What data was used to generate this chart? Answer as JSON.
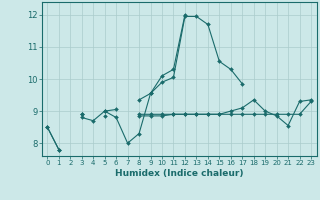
{
  "title": "",
  "xlabel": "Humidex (Indice chaleur)",
  "ylabel": "",
  "xlim": [
    -0.5,
    23.5
  ],
  "ylim": [
    7.6,
    12.4
  ],
  "yticks": [
    8,
    9,
    10,
    11,
    12
  ],
  "xticks": [
    0,
    1,
    2,
    3,
    4,
    5,
    6,
    7,
    8,
    9,
    10,
    11,
    12,
    13,
    14,
    15,
    16,
    17,
    18,
    19,
    20,
    21,
    22,
    23
  ],
  "bg_color": "#cce8e8",
  "grid_color": "#aacccc",
  "line_color": "#1a6b6b",
  "series": [
    [
      8.5,
      7.8,
      null,
      null,
      null,
      null,
      null,
      null,
      null,
      null,
      null,
      null,
      null,
      null,
      null,
      null,
      null,
      null,
      null,
      null,
      null,
      null,
      null,
      null
    ],
    [
      8.5,
      7.8,
      null,
      8.8,
      8.7,
      9.0,
      8.8,
      8.0,
      8.3,
      9.55,
      9.9,
      10.05,
      11.95,
      11.95,
      11.7,
      10.55,
      10.3,
      9.85,
      null,
      null,
      null,
      null,
      null,
      null
    ],
    [
      null,
      null,
      null,
      null,
      null,
      9.0,
      9.05,
      null,
      9.35,
      9.55,
      10.1,
      10.3,
      12.0,
      null,
      null,
      null,
      null,
      null,
      null,
      null,
      null,
      null,
      null,
      null
    ],
    [
      null,
      null,
      null,
      8.9,
      null,
      8.85,
      null,
      null,
      8.85,
      8.85,
      8.85,
      8.9,
      8.9,
      8.9,
      8.9,
      8.9,
      8.9,
      8.9,
      8.9,
      8.9,
      8.9,
      8.9,
      8.9,
      9.3
    ],
    [
      null,
      null,
      null,
      8.9,
      null,
      null,
      null,
      null,
      8.9,
      8.9,
      8.9,
      8.9,
      8.9,
      8.9,
      8.9,
      8.9,
      9.0,
      9.1,
      9.35,
      9.0,
      8.85,
      8.55,
      9.3,
      9.35
    ]
  ],
  "marker": "D",
  "markersize": 2.0,
  "linewidth": 0.8
}
